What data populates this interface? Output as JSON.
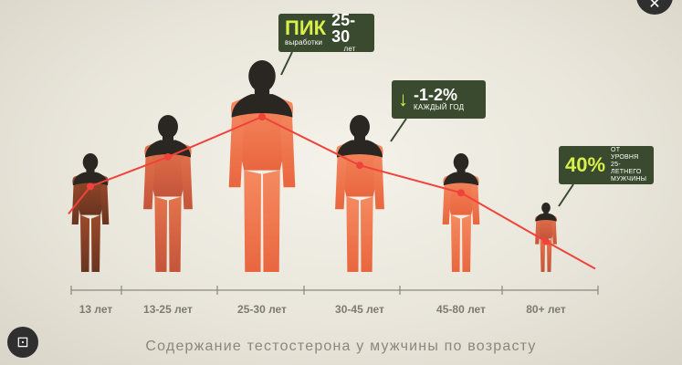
{
  "chart_data": {
    "type": "line",
    "title": "Содержание тестостерона у мужчины по возрасту",
    "categories": [
      "13 лет",
      "13-25 лет",
      "25-30 лет",
      "30-45 лет",
      "45-80 лет",
      "80+ лет"
    ],
    "values": [
      67,
      81,
      100,
      77,
      64,
      41
    ],
    "ylim": [
      0,
      100
    ],
    "line_color": "#f0423a",
    "figure_color_low": "#7a3a20",
    "figure_color_high": "#f07a56",
    "figure_head_color": "#2a2622"
  },
  "annotations": {
    "peak": {
      "big": "ПИК",
      "small": "выработки",
      "big2": "25-30",
      "small2": "лет"
    },
    "decline": {
      "arrow": "↓",
      "big": "-1-2%",
      "small": "КАЖДЫЙ ГОД"
    },
    "old": {
      "big": "40%",
      "small": "ОТ УРОВНЯ 25-ЛЕТНЕГО МУЖЧИНЫ"
    }
  },
  "ui": {
    "lens_icon": "lens-icon",
    "close_icon": "close-icon",
    "lens_glyph": "⊡",
    "close_glyph": "✕"
  }
}
